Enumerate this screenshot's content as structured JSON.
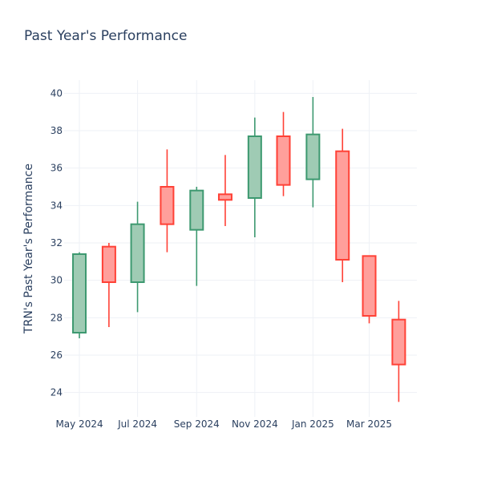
{
  "chart_data": {
    "type": "candlestick",
    "title": "Past Year's Performance",
    "xlabel": "",
    "ylabel": "TRN's Past Year's Performance",
    "ylim": [
      22.7,
      40.7
    ],
    "yticks": [
      24,
      26,
      28,
      30,
      32,
      34,
      36,
      38,
      40
    ],
    "x_range": [
      "2024-04-15",
      "2025-04-20"
    ],
    "xticks": [
      {
        "date": "2024-05-01",
        "label": "May 2024"
      },
      {
        "date": "2024-07-01",
        "label": "Jul 2024"
      },
      {
        "date": "2024-09-01",
        "label": "Sep 2024"
      },
      {
        "date": "2024-11-01",
        "label": "Nov 2024"
      },
      {
        "date": "2025-01-01",
        "label": "Jan 2025"
      },
      {
        "date": "2025-03-01",
        "label": "Mar 2025"
      }
    ],
    "grid": true,
    "colors": {
      "up_line": "#3D9970",
      "up_fill": "#9FCBB4",
      "down_line": "#FF4136",
      "down_fill": "#FF9F9B",
      "grid": "#EEF1F6",
      "text": "#2A3F5F"
    },
    "candles": [
      {
        "date": "2024-05-01",
        "open": 27.2,
        "high": 31.5,
        "low": 26.9,
        "close": 31.4
      },
      {
        "date": "2024-06-01",
        "open": 31.8,
        "high": 32.0,
        "low": 27.5,
        "close": 29.9
      },
      {
        "date": "2024-07-01",
        "open": 29.9,
        "high": 34.2,
        "low": 28.3,
        "close": 33.0
      },
      {
        "date": "2024-08-01",
        "open": 35.0,
        "high": 37.0,
        "low": 31.5,
        "close": 33.0
      },
      {
        "date": "2024-09-01",
        "open": 32.7,
        "high": 35.0,
        "low": 29.7,
        "close": 34.8
      },
      {
        "date": "2024-10-01",
        "open": 34.6,
        "high": 36.7,
        "low": 32.9,
        "close": 34.3
      },
      {
        "date": "2024-11-01",
        "open": 34.4,
        "high": 38.7,
        "low": 32.3,
        "close": 37.7
      },
      {
        "date": "2024-12-01",
        "open": 37.7,
        "high": 39.0,
        "low": 34.5,
        "close": 35.1
      },
      {
        "date": "2025-01-01",
        "open": 35.4,
        "high": 39.8,
        "low": 33.9,
        "close": 37.8
      },
      {
        "date": "2025-02-01",
        "open": 36.9,
        "high": 38.1,
        "low": 29.9,
        "close": 31.1
      },
      {
        "date": "2025-03-01",
        "open": 31.3,
        "high": 31.3,
        "low": 27.7,
        "close": 28.1
      },
      {
        "date": "2025-04-01",
        "open": 27.9,
        "high": 28.9,
        "low": 23.5,
        "close": 25.5
      }
    ]
  }
}
